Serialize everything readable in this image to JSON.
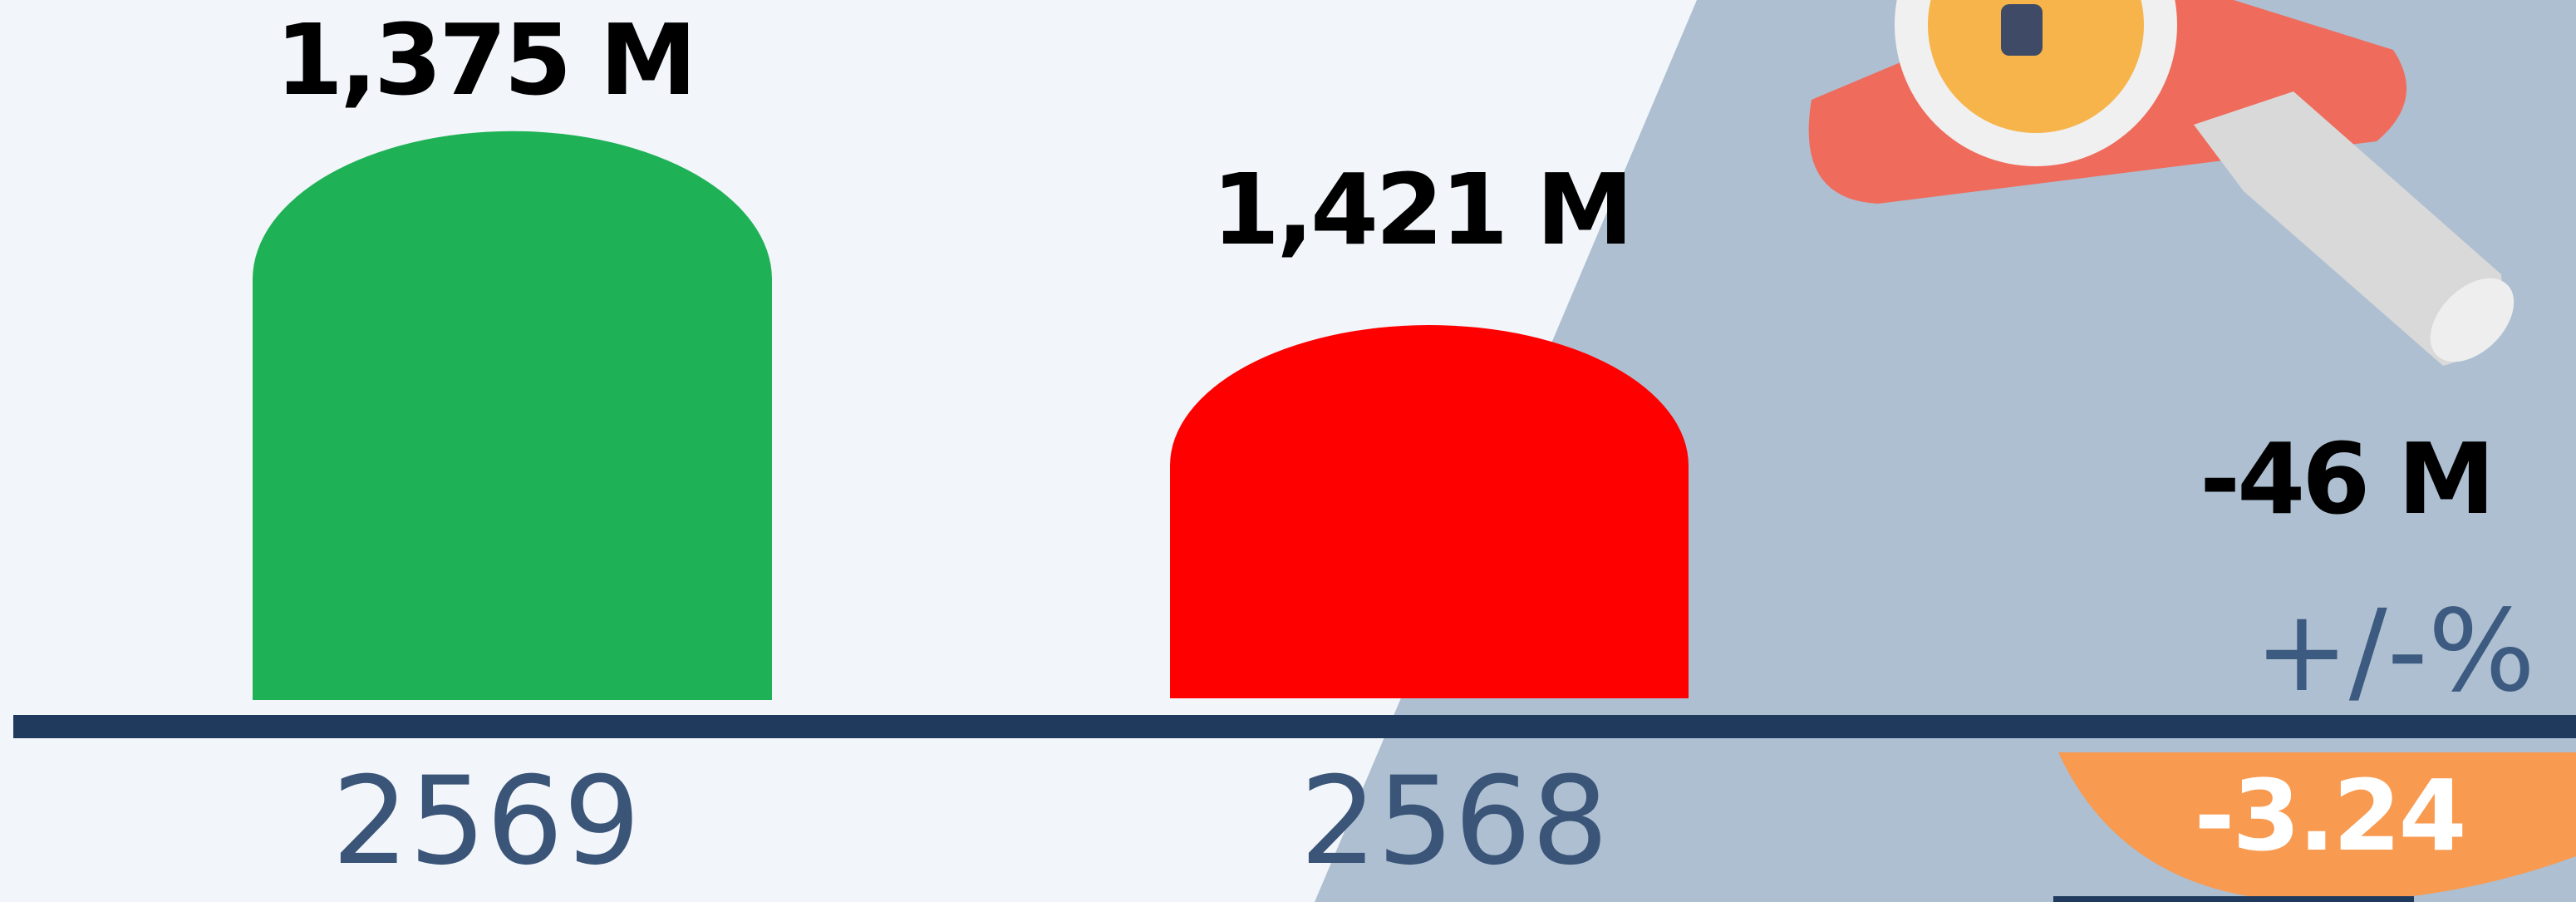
{
  "items": [
    {
      "value_label": "1,375 M",
      "year": "2569"
    },
    {
      "value_label": "1,421 M",
      "year": "2568"
    }
  ],
  "change": {
    "value_label": "-46 M",
    "percent_header": "+/-%",
    "percent": "-3.24"
  }
}
